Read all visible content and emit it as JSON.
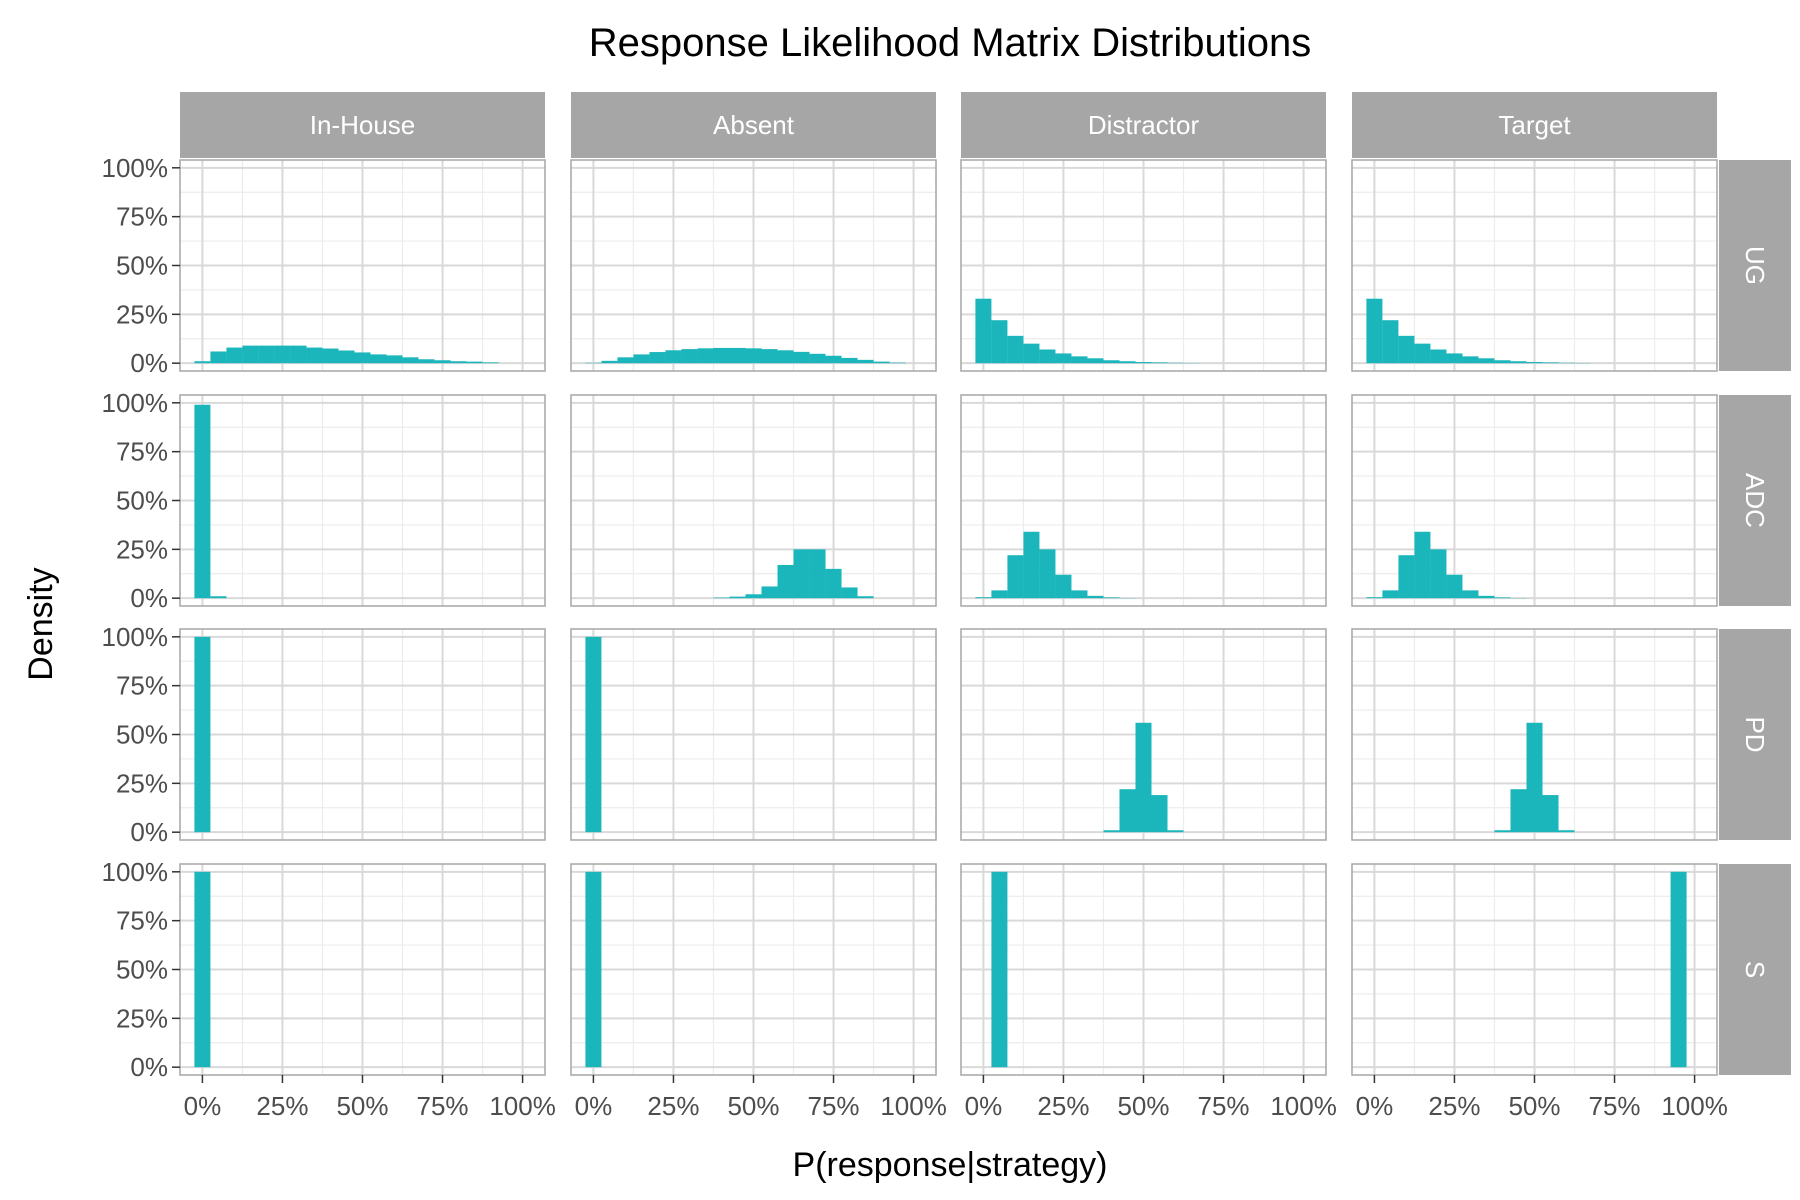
{
  "colors": {
    "bar": "#1bb6bb",
    "strip": "#a6a6a6",
    "panel_border": "#a6a6a6",
    "grid_major": "#d9d9d9",
    "grid_minor": "#ececec"
  },
  "chart_data": {
    "type": "bar",
    "title": "Response Likelihood Matrix Distributions",
    "xlabel": "P(response|strategy)",
    "ylabel": "Density",
    "xlim": [
      -0.07,
      1.07
    ],
    "ylim": [
      -0.04,
      1.04
    ],
    "x_ticks": [
      0,
      0.25,
      0.5,
      0.75,
      1.0
    ],
    "x_tick_labels": [
      "0%",
      "25%",
      "50%",
      "75%",
      "100%"
    ],
    "y_ticks": [
      0,
      0.25,
      0.5,
      0.75,
      1.0
    ],
    "y_tick_labels": [
      "0%",
      "25%",
      "50%",
      "75%",
      "100%"
    ],
    "grid": true,
    "bin_width": 0.05,
    "columns": [
      "In-House",
      "Absent",
      "Distractor",
      "Target"
    ],
    "rows": [
      "UG",
      "ADC",
      "PD",
      "S"
    ],
    "bin_centers": [
      0.0,
      0.05,
      0.1,
      0.15,
      0.2,
      0.25,
      0.3,
      0.35,
      0.4,
      0.45,
      0.5,
      0.55,
      0.6,
      0.65,
      0.7,
      0.75,
      0.8,
      0.85,
      0.9,
      0.95,
      1.0
    ],
    "panels": [
      [
        [
          0.01,
          0.06,
          0.08,
          0.09,
          0.09,
          0.09,
          0.09,
          0.08,
          0.075,
          0.065,
          0.055,
          0.045,
          0.04,
          0.03,
          0.02,
          0.015,
          0.01,
          0.008,
          0.004,
          0.0,
          0.0
        ],
        [
          0.002,
          0.012,
          0.03,
          0.045,
          0.057,
          0.066,
          0.072,
          0.076,
          0.078,
          0.078,
          0.076,
          0.072,
          0.066,
          0.058,
          0.048,
          0.038,
          0.027,
          0.017,
          0.008,
          0.003,
          0.0
        ],
        [
          0.33,
          0.22,
          0.14,
          0.1,
          0.07,
          0.05,
          0.035,
          0.025,
          0.015,
          0.01,
          0.006,
          0.004,
          0.002,
          0.001,
          0.0,
          0.0,
          0.0,
          0.0,
          0.0,
          0.0,
          0.0
        ],
        [
          0.33,
          0.22,
          0.14,
          0.1,
          0.07,
          0.05,
          0.035,
          0.025,
          0.015,
          0.01,
          0.006,
          0.004,
          0.002,
          0.001,
          0.0,
          0.0,
          0.0,
          0.0,
          0.0,
          0.0,
          0.0
        ]
      ],
      [
        [
          0.99,
          0.01,
          0.0,
          0.0,
          0.0,
          0.0,
          0.0,
          0.0,
          0.0,
          0.0,
          0.0,
          0.0,
          0.0,
          0.0,
          0.0,
          0.0,
          0.0,
          0.0,
          0.0,
          0.0,
          0.0
        ],
        [
          0.0,
          0.0,
          0.0,
          0.0,
          0.0,
          0.0,
          0.0,
          0.0,
          0.003,
          0.008,
          0.02,
          0.06,
          0.17,
          0.25,
          0.25,
          0.15,
          0.055,
          0.01,
          0.0,
          0.0,
          0.0
        ],
        [
          0.005,
          0.04,
          0.22,
          0.34,
          0.25,
          0.12,
          0.04,
          0.012,
          0.004,
          0.001,
          0.0,
          0.0,
          0.0,
          0.0,
          0.0,
          0.0,
          0.0,
          0.0,
          0.0,
          0.0,
          0.0
        ],
        [
          0.005,
          0.04,
          0.22,
          0.34,
          0.25,
          0.12,
          0.04,
          0.012,
          0.004,
          0.001,
          0.0,
          0.0,
          0.0,
          0.0,
          0.0,
          0.0,
          0.0,
          0.0,
          0.0,
          0.0,
          0.0
        ]
      ],
      [
        [
          1.0,
          0.0,
          0.0,
          0.0,
          0.0,
          0.0,
          0.0,
          0.0,
          0.0,
          0.0,
          0.0,
          0.0,
          0.0,
          0.0,
          0.0,
          0.0,
          0.0,
          0.0,
          0.0,
          0.0,
          0.0
        ],
        [
          1.0,
          0.0,
          0.0,
          0.0,
          0.0,
          0.0,
          0.0,
          0.0,
          0.0,
          0.0,
          0.0,
          0.0,
          0.0,
          0.0,
          0.0,
          0.0,
          0.0,
          0.0,
          0.0,
          0.0,
          0.0
        ],
        [
          0.0,
          0.0,
          0.0,
          0.0,
          0.0,
          0.0,
          0.0,
          0.0,
          0.01,
          0.22,
          0.56,
          0.19,
          0.01,
          0.0,
          0.0,
          0.0,
          0.0,
          0.0,
          0.0,
          0.0,
          0.0
        ],
        [
          0.0,
          0.0,
          0.0,
          0.0,
          0.0,
          0.0,
          0.0,
          0.0,
          0.01,
          0.22,
          0.56,
          0.19,
          0.01,
          0.0,
          0.0,
          0.0,
          0.0,
          0.0,
          0.0,
          0.0,
          0.0
        ]
      ],
      [
        [
          1.0,
          0.0,
          0.0,
          0.0,
          0.0,
          0.0,
          0.0,
          0.0,
          0.0,
          0.0,
          0.0,
          0.0,
          0.0,
          0.0,
          0.0,
          0.0,
          0.0,
          0.0,
          0.0,
          0.0,
          0.0
        ],
        [
          1.0,
          0.0,
          0.0,
          0.0,
          0.0,
          0.0,
          0.0,
          0.0,
          0.0,
          0.0,
          0.0,
          0.0,
          0.0,
          0.0,
          0.0,
          0.0,
          0.0,
          0.0,
          0.0,
          0.0,
          0.0
        ],
        [
          0.0,
          1.0,
          0.0,
          0.0,
          0.0,
          0.0,
          0.0,
          0.0,
          0.0,
          0.0,
          0.0,
          0.0,
          0.0,
          0.0,
          0.0,
          0.0,
          0.0,
          0.0,
          0.0,
          0.0,
          0.0
        ],
        [
          0.0,
          0.0,
          0.0,
          0.0,
          0.0,
          0.0,
          0.0,
          0.0,
          0.0,
          0.0,
          0.0,
          0.0,
          0.0,
          0.0,
          0.0,
          0.0,
          0.0,
          0.0,
          0.0,
          1.0,
          0.0
        ]
      ]
    ]
  }
}
